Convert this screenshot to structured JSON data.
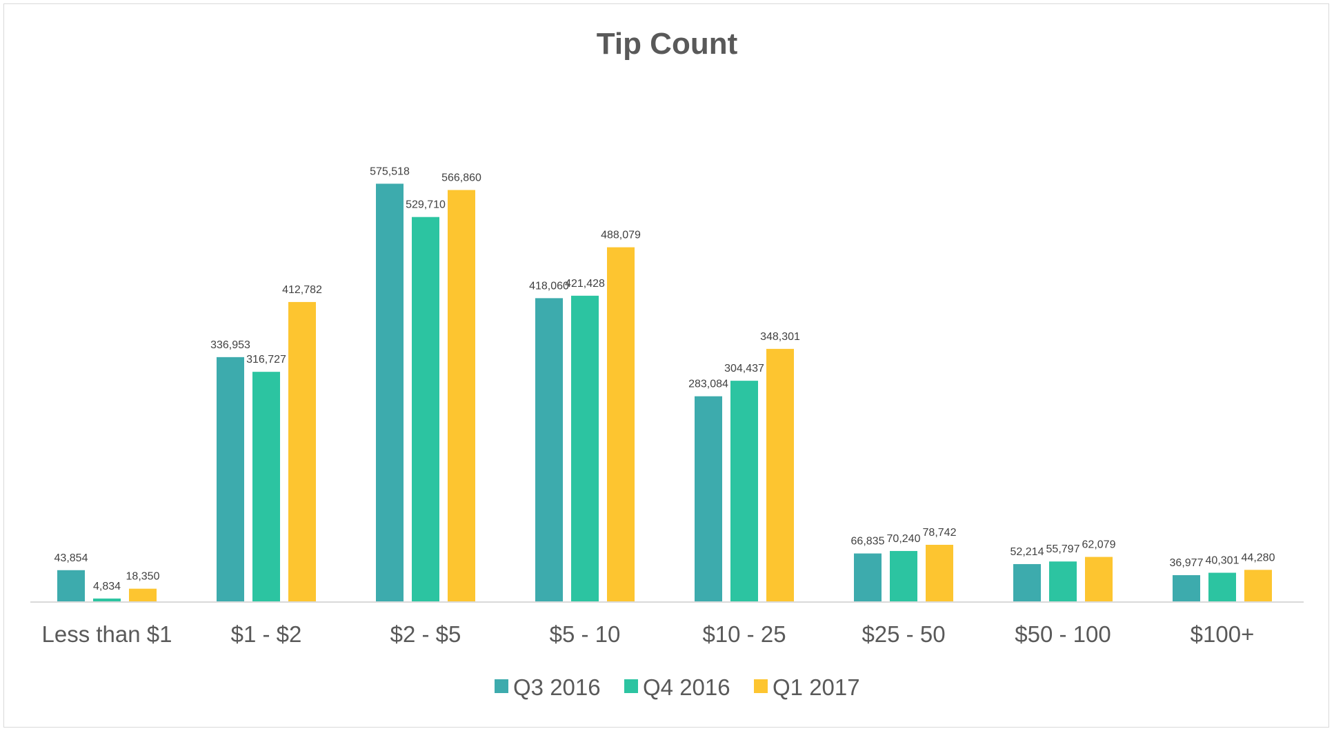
{
  "chart_data": {
    "type": "bar",
    "title": "Tip Count",
    "xlabel": "",
    "ylabel": "",
    "ylim": [
      0,
      700000
    ],
    "grid": false,
    "legend_position": "bottom",
    "categories": [
      "Less than $1",
      "$1 - $2",
      "$2 - $5",
      "$5 - 10",
      "$10 - 25",
      "$25 - 50",
      "$50 - 100",
      "$100+"
    ],
    "series": [
      {
        "name": "Q3 2016",
        "color": "#3DABAD",
        "values": [
          43854,
          336953,
          575518,
          418060,
          283084,
          66835,
          52214,
          36977
        ],
        "labels": [
          "43,854",
          "336,953",
          "575,518",
          "418,060",
          "283,084",
          "66,835",
          "52,214",
          "36,977"
        ]
      },
      {
        "name": "Q4 2016",
        "color": "#2CC4A1",
        "values": [
          4834,
          316727,
          529710,
          421428,
          304437,
          70240,
          55797,
          40301
        ],
        "labels": [
          "4,834",
          "316,727",
          "529,710",
          "421,428",
          "304,437",
          "70,240",
          "55,797",
          "40,301"
        ]
      },
      {
        "name": "Q1 2017",
        "color": "#FDC530",
        "values": [
          18350,
          412782,
          566860,
          488079,
          348301,
          78742,
          62079,
          44280
        ],
        "labels": [
          "18,350",
          "412,782",
          "566,860",
          "488,079",
          "348,301",
          "78,742",
          "62,079",
          "44,280"
        ]
      }
    ]
  }
}
